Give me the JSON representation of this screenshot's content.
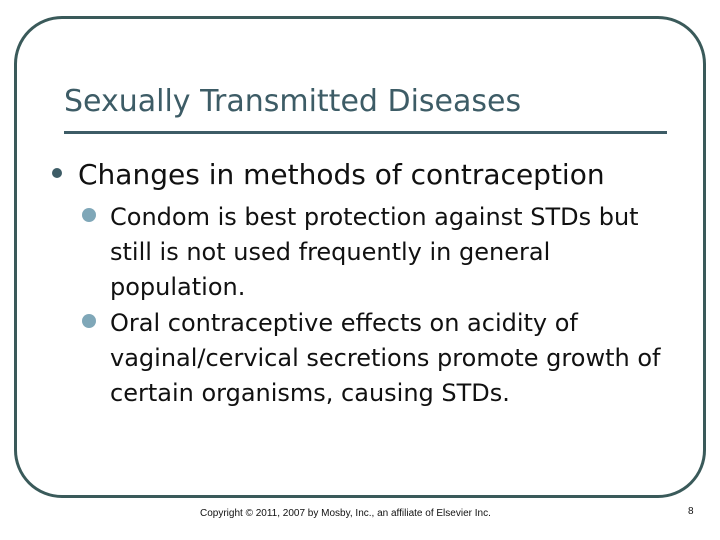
{
  "slide": {
    "title": "Sexually Transmitted Diseases",
    "bullet": "Changes in methods of contraception",
    "subbullets": [
      "Condom is best protection against STDs but still is not used frequently in general population.",
      "Oral contraceptive effects on acidity of vaginal/cervical secretions promote growth of certain organisms, causing STDs."
    ],
    "footer": "Copyright © 2011, 2007 by Mosby, Inc., an affiliate of Elsevier Inc.",
    "page_number": "8"
  },
  "colors": {
    "accent": "#3d5c66",
    "frame": "#3a5a5a",
    "subbullet_dot": "#7fa7b8"
  }
}
